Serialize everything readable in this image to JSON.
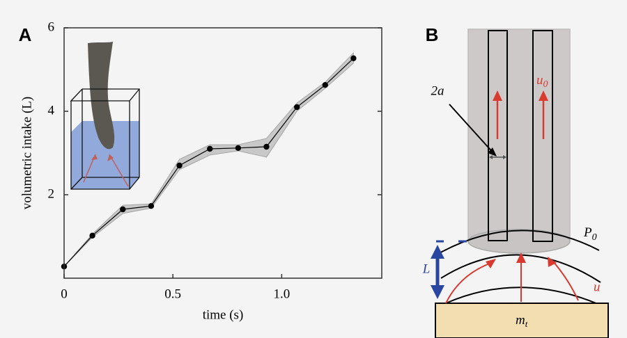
{
  "panels": {
    "a": "A",
    "b": "B"
  },
  "chart_data": {
    "type": "line",
    "x": [
      0,
      0.13,
      0.27,
      0.4,
      0.53,
      0.67,
      0.8,
      0.93,
      1.07,
      1.2,
      1.33
    ],
    "series": [
      {
        "color": "#000000",
        "values": [
          0.28,
          1.02,
          1.65,
          1.73,
          2.7,
          3.1,
          3.12,
          3.15,
          4.1,
          4.63,
          5.27
        ]
      }
    ],
    "band_lower": [
      0.28,
      0.98,
      1.55,
      1.68,
      2.6,
      2.95,
      3.05,
      2.9,
      4.0,
      4.55,
      5.15
    ],
    "band_upper": [
      0.28,
      1.06,
      1.75,
      1.78,
      2.85,
      3.2,
      3.2,
      3.35,
      4.2,
      4.7,
      5.4
    ],
    "band_color": "#c8c8c8",
    "xlabel": "time (s)",
    "ylabel": "volumetric intake (L)",
    "xlim": [
      0,
      1.46
    ],
    "ylim": [
      0,
      6
    ],
    "xticks": [
      0,
      0.5,
      {
        "value": 1,
        "label": "1.0"
      }
    ],
    "yticks": [
      2,
      4,
      6
    ]
  },
  "diagram": {
    "radius_label": "2a",
    "flow_label": {
      "text": "u",
      "sub": "0"
    },
    "pressure_label": {
      "text": "P",
      "sub": "0"
    },
    "length_label": "L",
    "velocity_label": "u",
    "mass_label": {
      "text": "m",
      "sub": "t"
    }
  }
}
